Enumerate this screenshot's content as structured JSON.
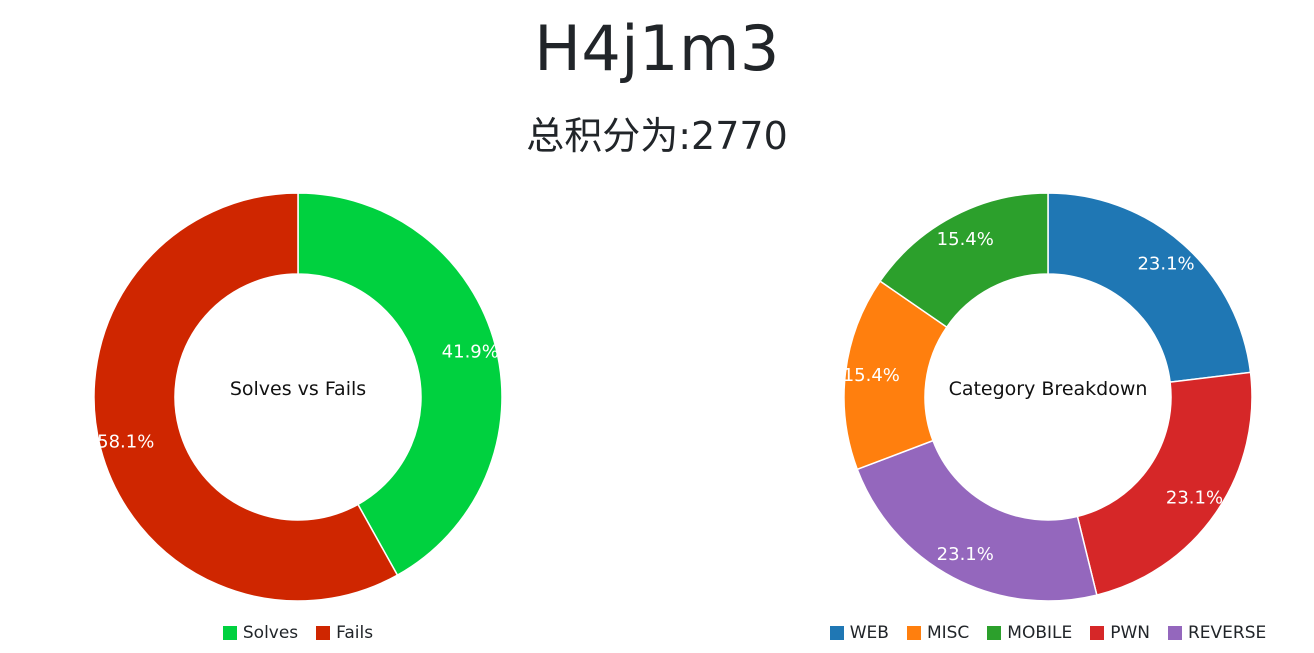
{
  "header": {
    "title": "H4j1m3",
    "subtitle": "总积分为:2770"
  },
  "chart_data": [
    {
      "type": "pie",
      "variant": "donut",
      "center_label": "Solves vs Fails",
      "categories": [
        "Solves",
        "Fails"
      ],
      "values": [
        41.9,
        58.1
      ],
      "labels": [
        "41.9%",
        "58.1%"
      ],
      "colors": [
        "#00d13f",
        "#cf2600"
      ],
      "legend": "bottom"
    },
    {
      "type": "pie",
      "variant": "donut",
      "center_label": "Category Breakdown",
      "categories": [
        "WEB",
        "MISC",
        "MOBILE",
        "PWN",
        "REVERSE"
      ],
      "values": [
        23.1,
        15.4,
        15.4,
        23.1,
        23.1
      ],
      "labels": [
        "23.1%",
        "15.4%",
        "15.4%",
        "23.1%",
        "23.1%"
      ],
      "slice_order": [
        "WEB",
        "PWN",
        "REVERSE",
        "MISC",
        "MOBILE"
      ],
      "colors": {
        "WEB": "#1f77b4",
        "MISC": "#ff7f0e",
        "MOBILE": "#2ca02c",
        "PWN": "#d62728",
        "REVERSE": "#9467bd"
      },
      "legend": "bottom"
    }
  ]
}
